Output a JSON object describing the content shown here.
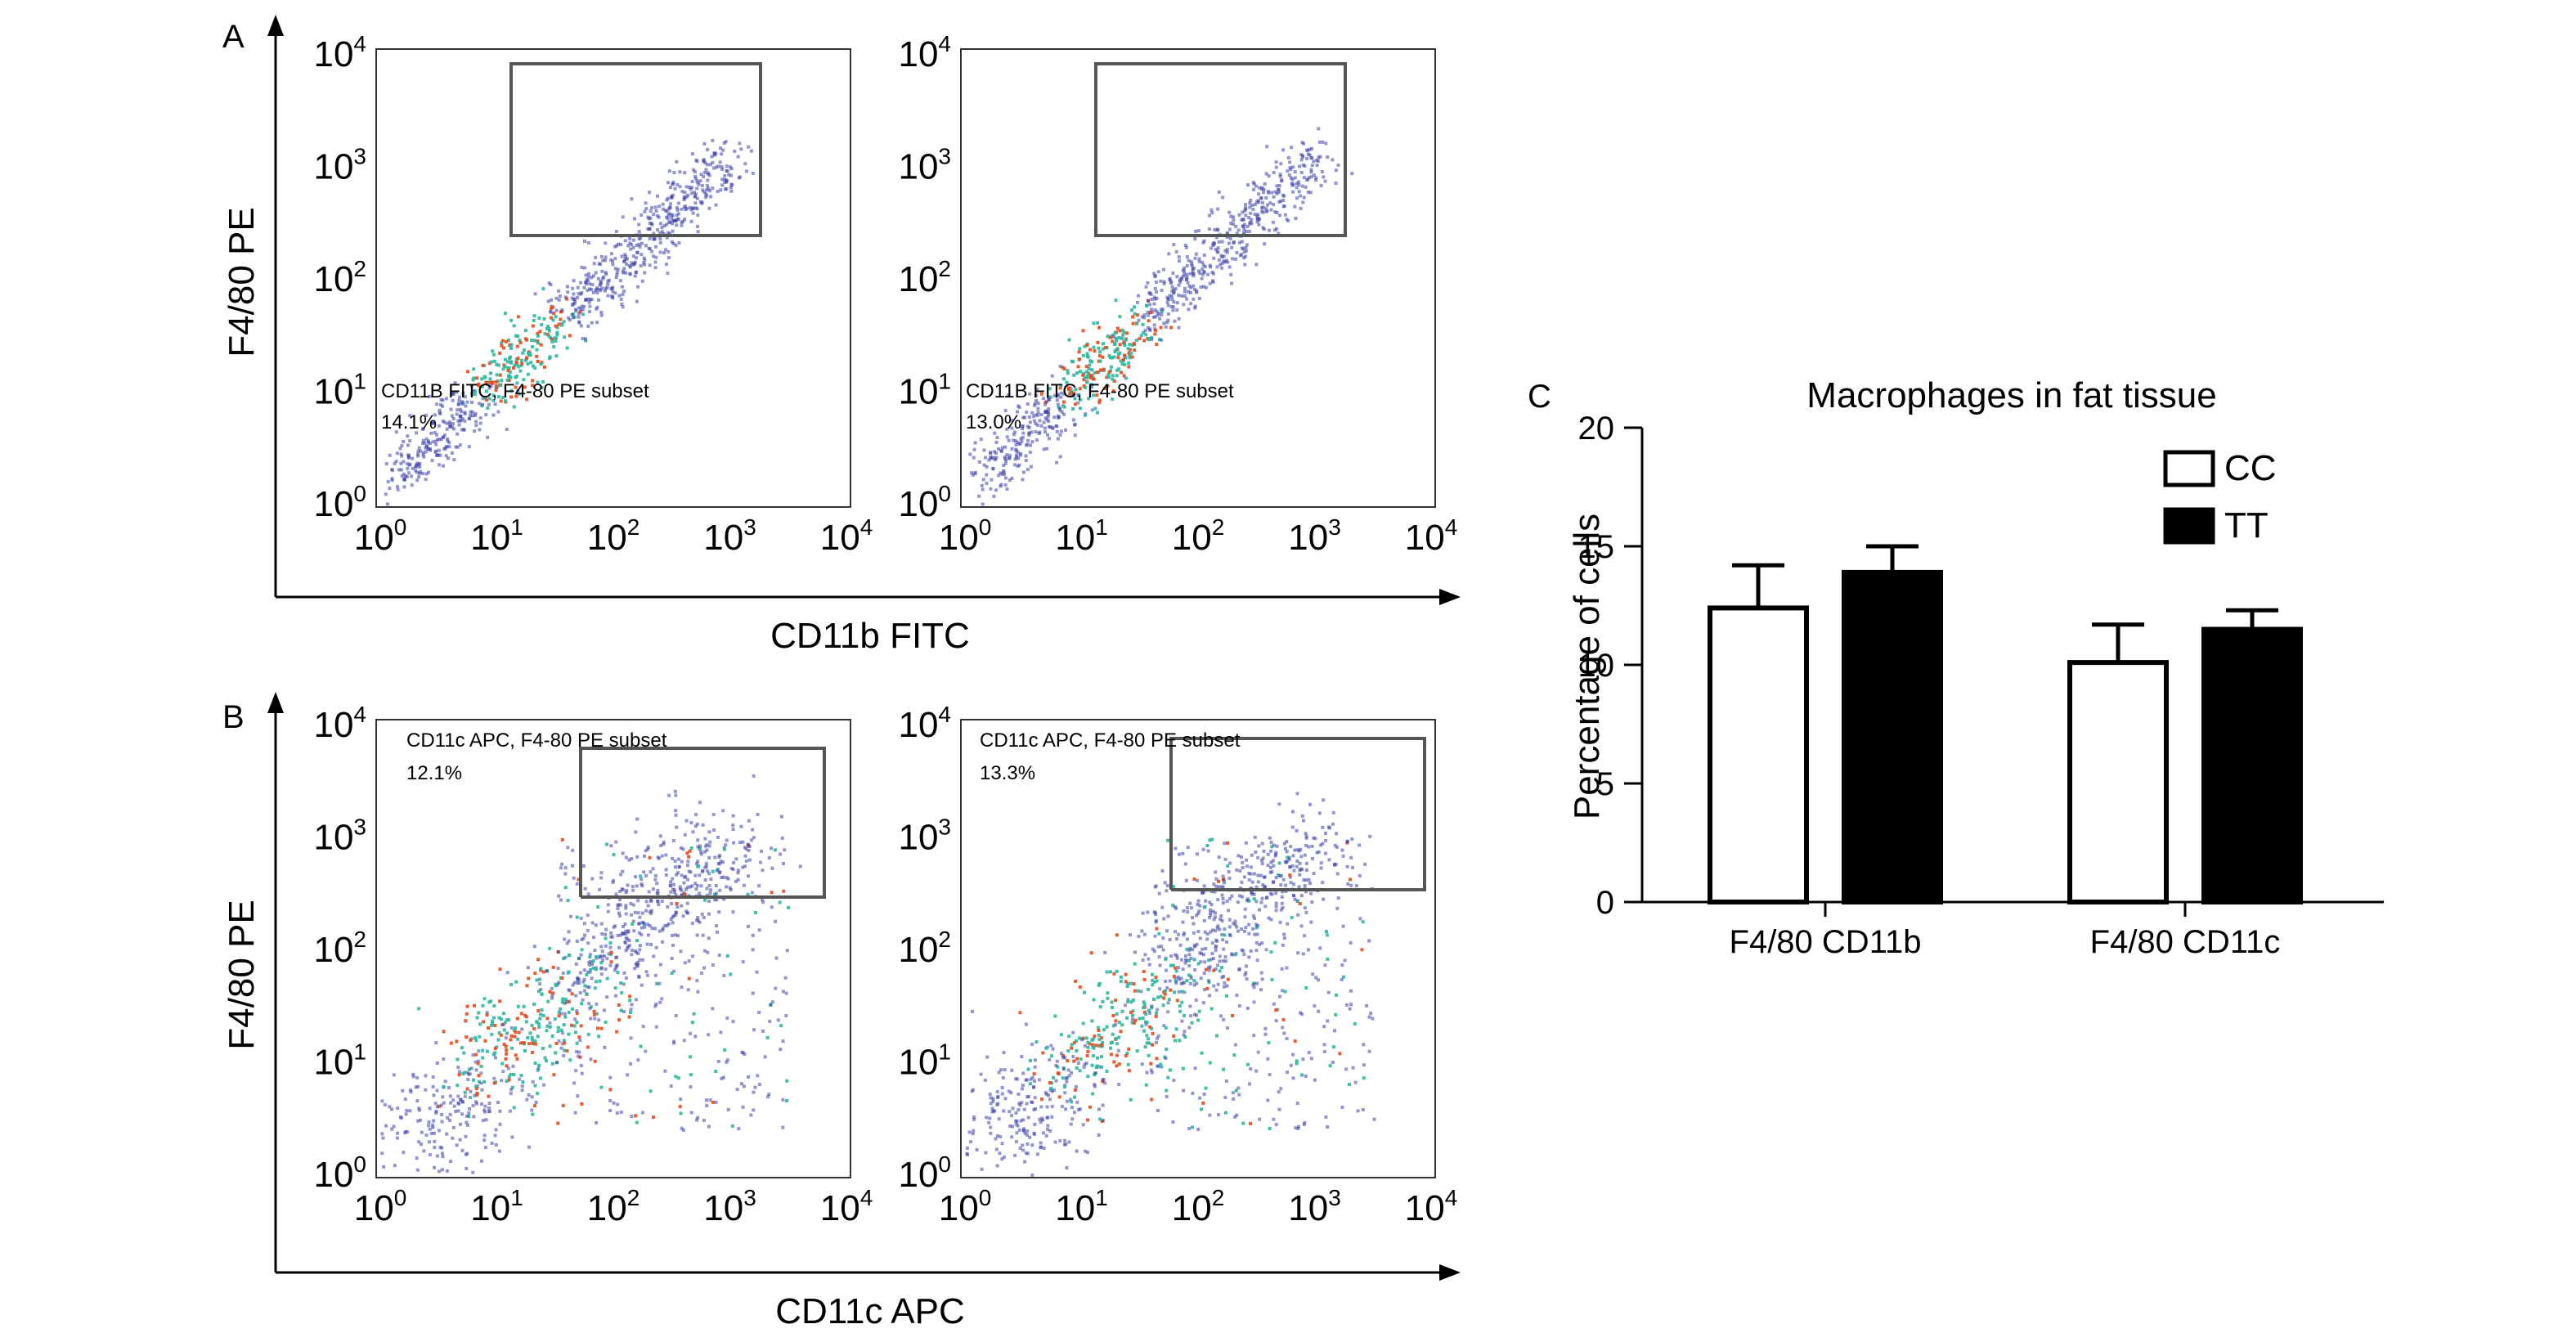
{
  "panels": {
    "a_label": "A",
    "b_label": "B",
    "c_label": "C"
  },
  "flow": {
    "tick_labels": [
      "10",
      "10",
      "10",
      "10",
      "10"
    ],
    "tick_exponents": [
      "0",
      "1",
      "2",
      "3",
      "4"
    ],
    "y_title": "F4/80 PE",
    "a_x_title": "CD11b FITC",
    "b_x_title": "CD11c APC",
    "plots": [
      {
        "id": "a1",
        "gate_label": "CD11B FITC, F4-80 PE subset",
        "gate_pct": "14.1%"
      },
      {
        "id": "a2",
        "gate_label": "CD11B FITC, F4-80 PE subset",
        "gate_pct": "13.0%"
      },
      {
        "id": "b1",
        "gate_label": "CD11c APC, F4-80 PE subset",
        "gate_pct": "12.1%"
      },
      {
        "id": "b2",
        "gate_label": "CD11c APC, F4-80 PE subset",
        "gate_pct": "13.3%"
      }
    ],
    "colors": {
      "low": "#3b3fa8",
      "mid": "#2fb7a0",
      "high": "#e84a1c",
      "gate": "#555555"
    }
  },
  "chart_data": {
    "type": "bar",
    "title": "Macrophages in fat tissue",
    "ylabel": "Percentage of cells",
    "xlabel": "",
    "categories": [
      "F4/80 CD11b",
      "F4/80 CD11c"
    ],
    "ylim": [
      0,
      20
    ],
    "yticks": [
      "0",
      "5",
      "10",
      "15",
      "20"
    ],
    "legend_position": "top-right",
    "series": [
      {
        "name": "CC",
        "values": [
          12.4,
          10.1
        ],
        "errors": [
          1.8,
          1.6
        ],
        "fill": "#ffffff"
      },
      {
        "name": "TT",
        "values": [
          13.9,
          11.5
        ],
        "errors": [
          1.1,
          0.8
        ],
        "fill": "#000000"
      }
    ]
  }
}
